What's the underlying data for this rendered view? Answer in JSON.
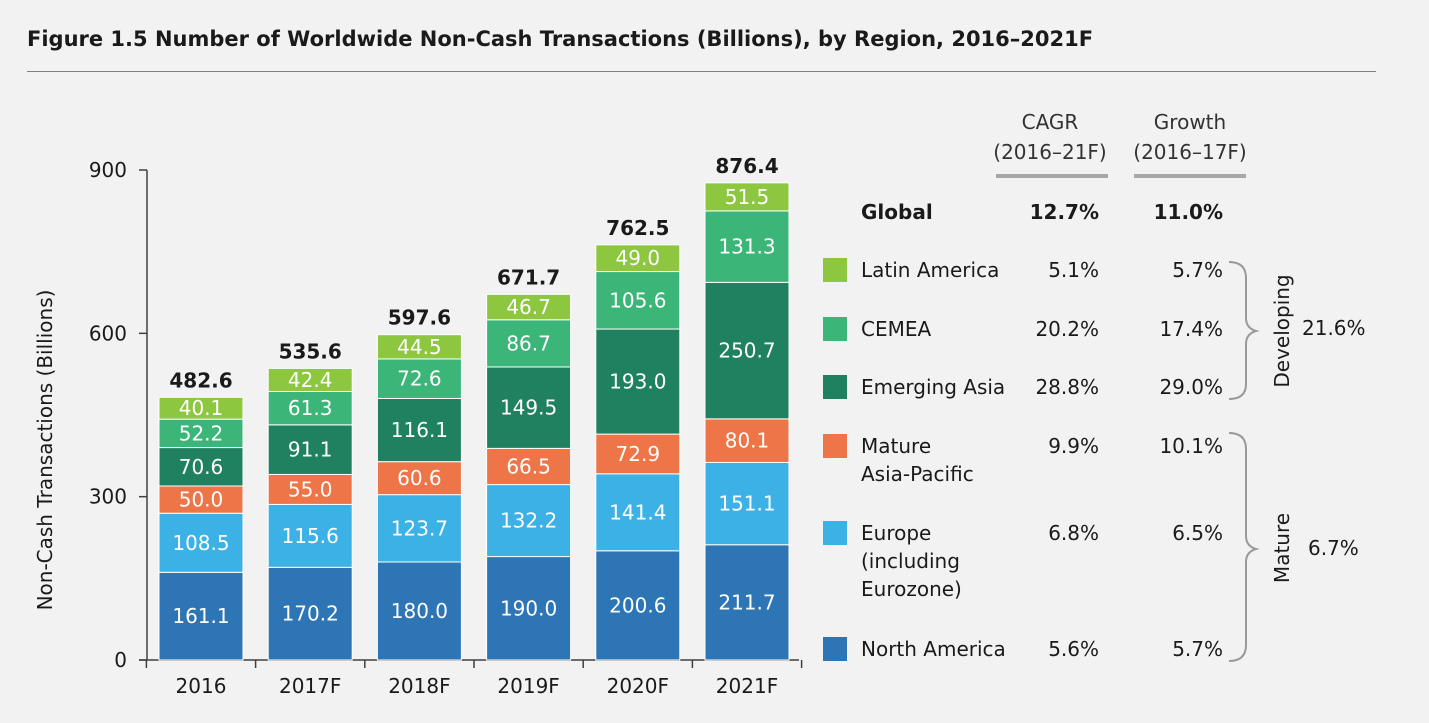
{
  "title": "Figure 1.5 Number of Worldwide Non-Cash Transactions (Billions), by Region, 2016–2021F",
  "chart_data": {
    "type": "bar",
    "stacked": true,
    "categories": [
      "2016",
      "2017F",
      "2018F",
      "2019F",
      "2020F",
      "2021F"
    ],
    "series": [
      {
        "name": "North America",
        "color": "#2e75b6",
        "values": [
          161.1,
          170.2,
          180.0,
          190.0,
          200.6,
          211.7
        ],
        "labels": [
          "161.1",
          "170.2",
          "180.0",
          "190.0",
          "200.6",
          "211.7"
        ]
      },
      {
        "name": "Europe (including Eurozone)",
        "color": "#3cb1e6",
        "values": [
          108.5,
          115.6,
          123.7,
          132.2,
          141.4,
          151.1
        ],
        "labels": [
          "108.5",
          "115.6",
          "123.7",
          "132.2",
          "141.4",
          "151.1"
        ]
      },
      {
        "name": "Mature Asia-Pacific",
        "color": "#ed7548",
        "values": [
          50.0,
          55.0,
          60.6,
          66.5,
          72.9,
          80.1
        ],
        "labels": [
          "50.0",
          "55.0",
          "60.6",
          "66.5",
          "72.9",
          "80.1"
        ]
      },
      {
        "name": "Emerging Asia",
        "color": "#1f8160",
        "values": [
          70.6,
          91.1,
          116.1,
          149.5,
          193.0,
          250.7
        ],
        "labels": [
          "70.6",
          "91.1",
          "116.1",
          "149.5",
          "193.0",
          "250.7"
        ]
      },
      {
        "name": "CEMEA",
        "color": "#3cb678",
        "values": [
          52.2,
          61.3,
          72.6,
          86.7,
          105.6,
          131.3
        ],
        "labels": [
          "52.2",
          "61.3",
          "72.6",
          "86.7",
          "105.6",
          "131.3"
        ]
      },
      {
        "name": "Latin America",
        "color": "#8dc63f",
        "values": [
          40.1,
          42.4,
          44.5,
          46.7,
          49.0,
          51.5
        ],
        "labels": [
          "40.1",
          "42.4",
          "44.5",
          "46.7",
          "49.0",
          "51.5"
        ]
      }
    ],
    "totals": [
      "482.6",
      "535.6",
      "597.6",
      "671.7",
      "762.5",
      "876.4"
    ],
    "ylabel": "Non-Cash Transactions (Billions)",
    "yticks": [
      "0",
      "300",
      "600",
      "900"
    ],
    "ylim": [
      0,
      900
    ],
    "grid": false,
    "legend_position": "right"
  },
  "table": {
    "cagr_header": [
      "CAGR",
      "(2016–21F)"
    ],
    "growth_header": [
      "Growth",
      "(2016–17F)"
    ],
    "global": {
      "label": "Global",
      "cagr": "12.7%",
      "growth": "11.0%"
    },
    "rows": [
      {
        "label_lines": [
          "Latin America"
        ],
        "color": "#8dc63f",
        "cagr": "5.1%",
        "growth": "5.7%"
      },
      {
        "label_lines": [
          "CEMEA"
        ],
        "color": "#3cb678",
        "cagr": "20.2%",
        "growth": "17.4%"
      },
      {
        "label_lines": [
          "Emerging Asia"
        ],
        "color": "#1f8160",
        "cagr": "28.8%",
        "growth": "29.0%"
      },
      {
        "label_lines": [
          "Mature",
          "Asia-Pacific"
        ],
        "color": "#ed7548",
        "cagr": "9.9%",
        "growth": "10.1%"
      },
      {
        "label_lines": [
          "Europe",
          "(including",
          "Eurozone)"
        ],
        "color": "#3cb1e6",
        "cagr": "6.8%",
        "growth": "6.5%"
      },
      {
        "label_lines": [
          "North America"
        ],
        "color": "#2e75b6",
        "cagr": "5.6%",
        "growth": "5.7%"
      }
    ],
    "groups": {
      "developing": {
        "label": "Developing",
        "value": "21.6%"
      },
      "mature": {
        "label": "Mature",
        "value": "6.7%"
      }
    }
  }
}
